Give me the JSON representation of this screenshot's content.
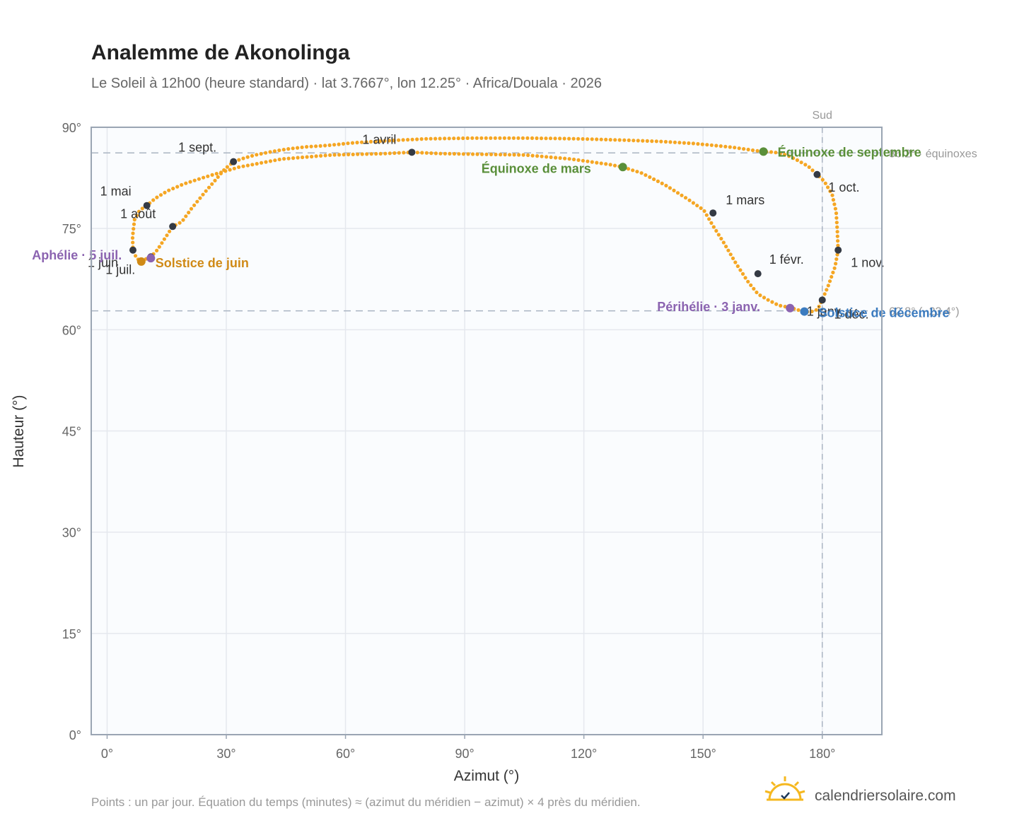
{
  "colors": {
    "curve": "#f5a623",
    "marker": "#343a44",
    "equinox": "#5a8f3a",
    "solstice_june": "#d08a16",
    "solstice_december": "#3b7bbf",
    "aphelion_perihelion": "#8b63b0",
    "grid": "#e5e8ee",
    "frame": "#9aa5b3",
    "reference": "#aab4c2",
    "plot_bg": "#fafcfe"
  },
  "chart_data": {
    "type": "scatter",
    "title": "Analemme de Akonolinga",
    "subtitle": "Le Soleil à 12h00 (heure standard) · lat 3.7667°, lon 12.25° · Africa/Douala · 2026",
    "xlabel": "Azimut (°)",
    "ylabel": "Hauteur (°)",
    "xlim": [
      -4,
      195
    ],
    "ylim": [
      0,
      90
    ],
    "xticks": [
      "0°",
      "30°",
      "60°",
      "90°",
      "120°",
      "150°",
      "180°"
    ],
    "yticks": [
      "0°",
      "15°",
      "30°",
      "45°",
      "60°",
      "75°",
      "90°"
    ],
    "grid": true,
    "south_line": {
      "x": 180,
      "label": "Sud"
    },
    "reference_lines": [
      {
        "y": 86.2,
        "label": "86.2° · équinoxes"
      },
      {
        "y": 62.8,
        "label": "62.8° (−23.4°)"
      }
    ],
    "curve": [
      [
        184,
        71.8
      ],
      [
        183.8,
        74.5
      ],
      [
        183.5,
        77.5
      ],
      [
        182.5,
        80.0
      ],
      [
        180.5,
        82.0
      ],
      [
        178.7,
        83.0
      ],
      [
        176.5,
        84.2
      ],
      [
        173.5,
        85.2
      ],
      [
        171.0,
        85.9
      ],
      [
        168.0,
        86.3
      ],
      [
        165.2,
        86.4
      ],
      [
        162.5,
        86.6
      ],
      [
        157.8,
        87.0
      ],
      [
        153.0,
        87.3
      ],
      [
        147.5,
        87.6
      ],
      [
        139.4,
        87.9
      ],
      [
        129.8,
        88.1
      ],
      [
        118.3,
        88.3
      ],
      [
        105.2,
        88.4
      ],
      [
        92.4,
        88.4
      ],
      [
        80.6,
        88.3
      ],
      [
        70.3,
        88.0
      ],
      [
        62.0,
        87.7
      ],
      [
        55.3,
        87.3
      ],
      [
        50.0,
        87.1
      ],
      [
        45.7,
        86.8
      ],
      [
        42.4,
        86.5
      ],
      [
        39.8,
        86.2
      ],
      [
        37.3,
        85.9
      ],
      [
        34.8,
        85.5
      ],
      [
        31.8,
        84.9
      ],
      [
        29.6,
        83.8
      ],
      [
        27.0,
        82.0
      ],
      [
        24.5,
        80.3
      ],
      [
        21.3,
        78.0
      ],
      [
        18.8,
        76.0
      ],
      [
        16.5,
        75.3
      ],
      [
        14.5,
        73.5
      ],
      [
        12.6,
        71.8
      ],
      [
        11.0,
        70.8
      ],
      [
        9.4,
        70.4
      ],
      [
        8.6,
        70.1
      ],
      [
        7.4,
        70.6
      ],
      [
        6.5,
        71.8
      ],
      [
        6.4,
        73.8
      ],
      [
        6.9,
        76.3
      ],
      [
        8.2,
        77.7
      ],
      [
        10.0,
        78.4
      ],
      [
        12.2,
        79.5
      ],
      [
        15.3,
        80.6
      ],
      [
        19.3,
        81.6
      ],
      [
        25.1,
        82.7
      ],
      [
        33.2,
        84.1
      ],
      [
        44.0,
        85.3
      ],
      [
        56.6,
        85.9
      ],
      [
        69.8,
        86.1
      ],
      [
        76.7,
        86.3
      ],
      [
        84.1,
        86.1
      ],
      [
        94.0,
        86.0
      ],
      [
        105.2,
        85.9
      ],
      [
        116.7,
        85.3
      ],
      [
        126.3,
        84.5
      ],
      [
        129.8,
        84.1
      ],
      [
        134.6,
        83.2
      ],
      [
        140.3,
        81.5
      ],
      [
        146.3,
        79.3
      ],
      [
        150.2,
        77.7
      ],
      [
        152.5,
        75.4
      ],
      [
        155.1,
        73.0
      ],
      [
        158.1,
        70.0
      ],
      [
        161.2,
        67.2
      ],
      [
        163.8,
        65.3
      ],
      [
        166.4,
        64.4
      ],
      [
        169.1,
        63.6
      ],
      [
        171.9,
        63.3
      ],
      [
        174.6,
        62.8
      ],
      [
        176.9,
        62.6
      ],
      [
        178.8,
        63.0
      ],
      [
        179.9,
        64.3
      ],
      [
        181.5,
        66.5
      ],
      [
        183.2,
        69.3
      ],
      [
        184,
        71.8
      ]
    ],
    "month_markers": [
      {
        "label": "1 janv.",
        "x": 180.0,
        "y": 64.4
      },
      {
        "label": "1 févr.",
        "x": 163.8,
        "y": 68.3
      },
      {
        "label": "1 mars",
        "x": 152.5,
        "y": 77.3
      },
      {
        "label": "1 avril",
        "x": 76.7,
        "y": 86.3
      },
      {
        "label": "1 mai",
        "x": 10.0,
        "y": 78.4
      },
      {
        "label": "1 juin",
        "x": 6.5,
        "y": 71.8
      },
      {
        "label": "1 juil.",
        "x": 11.0,
        "y": 70.8
      },
      {
        "label": "1 août",
        "x": 16.5,
        "y": 75.3
      },
      {
        "label": "1 sept.",
        "x": 31.8,
        "y": 84.9
      },
      {
        "label": "1 oct.",
        "x": 178.7,
        "y": 83.0
      },
      {
        "label": "1 nov.",
        "x": 184.0,
        "y": 71.8
      },
      {
        "label": "1 déc.",
        "x": 175.5,
        "y": 62.7
      }
    ],
    "events": [
      {
        "label": "Équinoxe de mars",
        "x": 129.8,
        "y": 84.1,
        "color": "#5a8f3a"
      },
      {
        "label": "Équinoxe de septembre",
        "x": 165.2,
        "y": 86.4,
        "color": "#5a8f3a"
      },
      {
        "label": "Solstice de juin",
        "x": 8.6,
        "y": 70.1,
        "color": "#d08a16"
      },
      {
        "label": "Solstice de décembre",
        "x": 175.5,
        "y": 62.7,
        "color": "#3b7bbf"
      },
      {
        "label": "Aphélie · 5 juil.",
        "x": 11.0,
        "y": 70.6,
        "color": "#8b63b0"
      },
      {
        "label": "Périhélie · 3 janv.",
        "x": 171.9,
        "y": 63.2,
        "color": "#8b63b0"
      }
    ]
  },
  "footnote": "Points : un par jour. Équation du temps (minutes) ≈ (azimut du méridien − azimut) × 4 près du méridien.",
  "brand": {
    "name": "calendriersolaire.com",
    "icon": "sun-icon"
  }
}
